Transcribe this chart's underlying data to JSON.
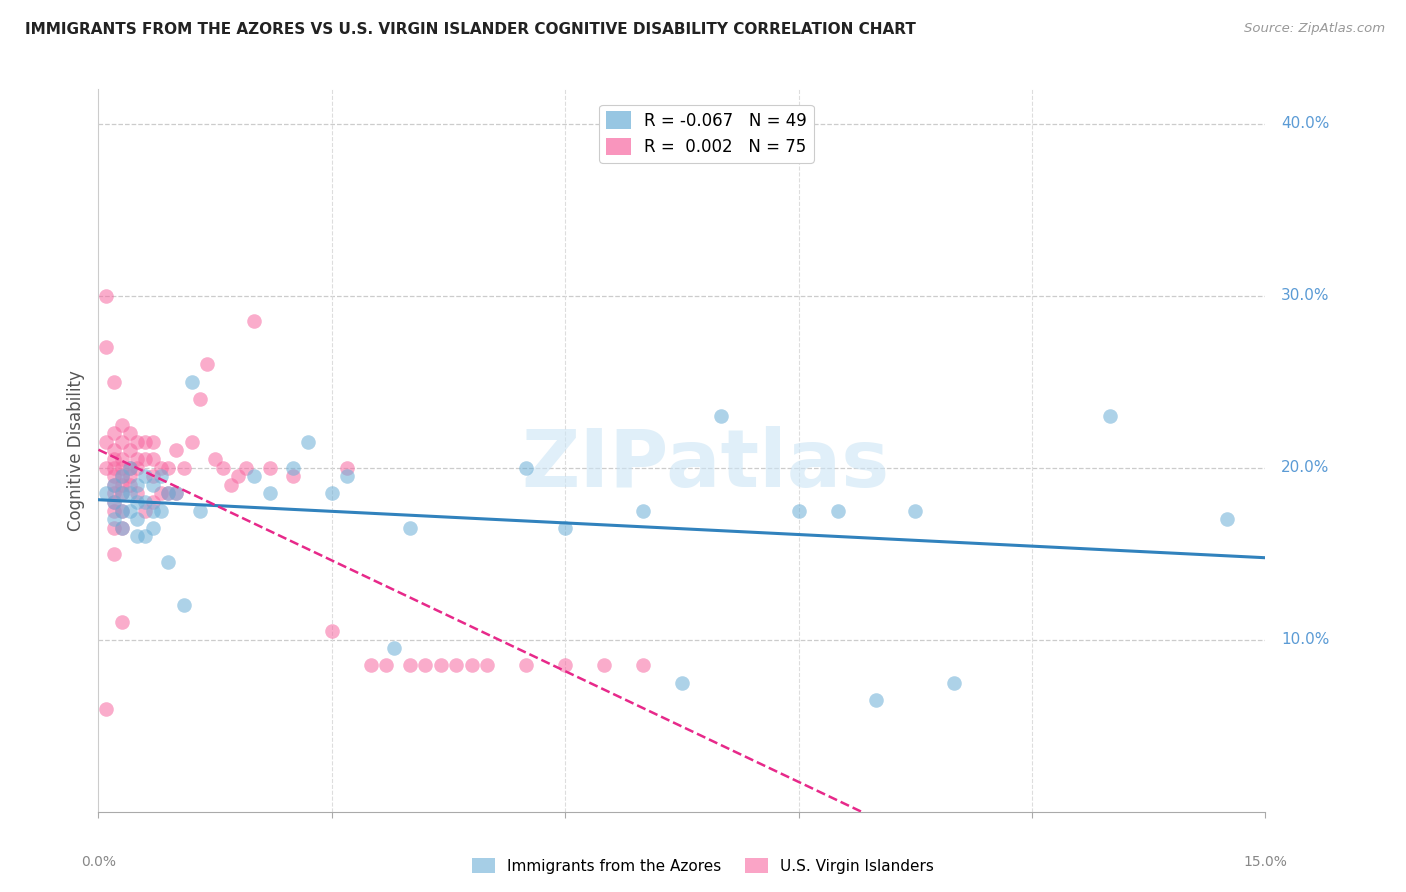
{
  "title": "IMMIGRANTS FROM THE AZORES VS U.S. VIRGIN ISLANDER COGNITIVE DISABILITY CORRELATION CHART",
  "source": "Source: ZipAtlas.com",
  "ylabel": "Cognitive Disability",
  "right_yticks": [
    10.0,
    20.0,
    30.0,
    40.0
  ],
  "xmin": 0.0,
  "xmax": 0.15,
  "ymin": 0.0,
  "ymax": 0.42,
  "series1_color": "#6baed6",
  "series2_color": "#f768a1",
  "trend1_color": "#3182bd",
  "trend2_color": "#e7298a",
  "watermark": "ZIPatlas",
  "legend_label1": "R = -0.067",
  "legend_n1": "N = 49",
  "legend_label2": "R =  0.002",
  "legend_n2": "N = 75",
  "legend_label1_bottom": "Immigrants from the Azores",
  "legend_label2_bottom": "U.S. Virgin Islanders",
  "blue_points_x": [
    0.001,
    0.002,
    0.002,
    0.002,
    0.003,
    0.003,
    0.003,
    0.003,
    0.004,
    0.004,
    0.004,
    0.005,
    0.005,
    0.005,
    0.005,
    0.006,
    0.006,
    0.006,
    0.007,
    0.007,
    0.007,
    0.008,
    0.008,
    0.009,
    0.009,
    0.01,
    0.011,
    0.012,
    0.013,
    0.02,
    0.022,
    0.025,
    0.027,
    0.03,
    0.032,
    0.038,
    0.04,
    0.055,
    0.06,
    0.07,
    0.075,
    0.08,
    0.09,
    0.095,
    0.1,
    0.105,
    0.11,
    0.13,
    0.145
  ],
  "blue_points_y": [
    0.185,
    0.19,
    0.18,
    0.17,
    0.195,
    0.185,
    0.175,
    0.165,
    0.2,
    0.185,
    0.175,
    0.19,
    0.18,
    0.17,
    0.16,
    0.195,
    0.18,
    0.16,
    0.19,
    0.175,
    0.165,
    0.195,
    0.175,
    0.185,
    0.145,
    0.185,
    0.12,
    0.25,
    0.175,
    0.195,
    0.185,
    0.2,
    0.215,
    0.185,
    0.195,
    0.095,
    0.165,
    0.2,
    0.165,
    0.175,
    0.075,
    0.23,
    0.175,
    0.175,
    0.065,
    0.175,
    0.075,
    0.23,
    0.17
  ],
  "pink_points_x": [
    0.001,
    0.001,
    0.001,
    0.001,
    0.001,
    0.002,
    0.002,
    0.002,
    0.002,
    0.002,
    0.002,
    0.002,
    0.002,
    0.002,
    0.002,
    0.002,
    0.002,
    0.003,
    0.003,
    0.003,
    0.003,
    0.003,
    0.003,
    0.003,
    0.003,
    0.003,
    0.003,
    0.004,
    0.004,
    0.004,
    0.004,
    0.004,
    0.005,
    0.005,
    0.005,
    0.005,
    0.006,
    0.006,
    0.006,
    0.007,
    0.007,
    0.007,
    0.007,
    0.008,
    0.008,
    0.009,
    0.009,
    0.01,
    0.01,
    0.011,
    0.012,
    0.013,
    0.014,
    0.015,
    0.016,
    0.017,
    0.018,
    0.019,
    0.02,
    0.022,
    0.025,
    0.03,
    0.032,
    0.035,
    0.037,
    0.04,
    0.042,
    0.044,
    0.046,
    0.048,
    0.05,
    0.055,
    0.06,
    0.065,
    0.07
  ],
  "pink_points_y": [
    0.27,
    0.3,
    0.215,
    0.2,
    0.06,
    0.25,
    0.22,
    0.21,
    0.205,
    0.2,
    0.195,
    0.19,
    0.185,
    0.18,
    0.175,
    0.165,
    0.15,
    0.225,
    0.215,
    0.205,
    0.2,
    0.195,
    0.19,
    0.185,
    0.175,
    0.165,
    0.11,
    0.22,
    0.21,
    0.2,
    0.195,
    0.19,
    0.215,
    0.205,
    0.2,
    0.185,
    0.215,
    0.205,
    0.175,
    0.215,
    0.205,
    0.195,
    0.18,
    0.2,
    0.185,
    0.2,
    0.185,
    0.21,
    0.185,
    0.2,
    0.215,
    0.24,
    0.26,
    0.205,
    0.2,
    0.19,
    0.195,
    0.2,
    0.285,
    0.2,
    0.195,
    0.105,
    0.2,
    0.085,
    0.085,
    0.085,
    0.085,
    0.085,
    0.085,
    0.085,
    0.085,
    0.085,
    0.085,
    0.085,
    0.085
  ]
}
